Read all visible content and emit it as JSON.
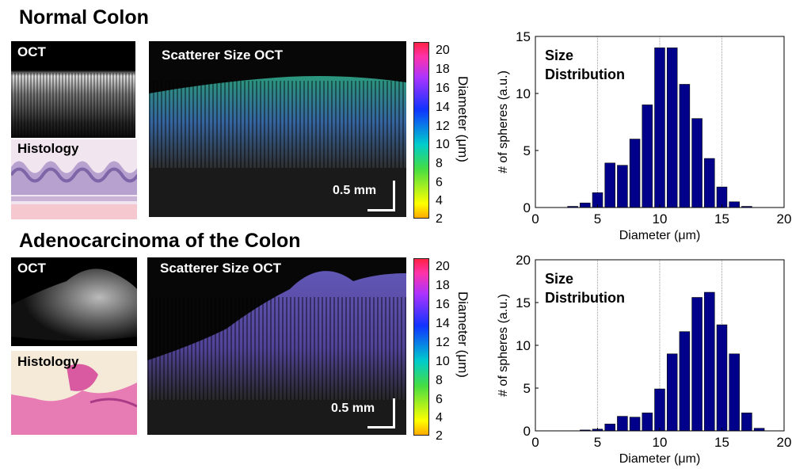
{
  "sections": [
    {
      "title": "Normal Colon",
      "oct_label": "OCT",
      "histology_label": "Histology",
      "scatter_label": "Scatterer Size OCT",
      "scalebar_label": "0.5 mm",
      "colorbar": {
        "label": "Diameter (μm)",
        "ticks": [
          "2",
          "4",
          "6",
          "8",
          "10",
          "12",
          "14",
          "16",
          "18",
          "20"
        ]
      }
    },
    {
      "title": "Adenocarcinoma of the Colon",
      "oct_label": "OCT",
      "histology_label": "Histology",
      "scatter_label": "Scatterer Size OCT",
      "scalebar_label": "0.5 mm",
      "colorbar": {
        "label": "Diameter (μm)",
        "ticks": [
          "2",
          "4",
          "6",
          "8",
          "10",
          "12",
          "14",
          "16",
          "18",
          "20"
        ]
      }
    }
  ],
  "chart_data": [
    {
      "type": "bar",
      "annotation": "Size Distribution",
      "xlabel": "Diameter (μm)",
      "ylabel": "# of spheres (a.u.)",
      "xlim": [
        0,
        20
      ],
      "ylim": [
        0,
        15
      ],
      "xticks": [
        0,
        5,
        10,
        15,
        20
      ],
      "yticks": [
        0,
        5,
        10,
        15
      ],
      "grid_x": [
        5,
        10,
        15
      ],
      "bar_color": "#00008b",
      "x": [
        3,
        4,
        5,
        6,
        7,
        8,
        9,
        10,
        11,
        12,
        13,
        14,
        15,
        16,
        17
      ],
      "values": [
        0.1,
        0.4,
        1.3,
        3.9,
        3.7,
        6.0,
        9.0,
        14.0,
        14.0,
        10.8,
        7.8,
        4.3,
        1.8,
        0.5,
        0.1
      ]
    },
    {
      "type": "bar",
      "annotation": "Size Distribution",
      "xlabel": "Diameter (μm)",
      "ylabel": "# of spheres (a.u.)",
      "xlim": [
        0,
        20
      ],
      "ylim": [
        0,
        20
      ],
      "xticks": [
        0,
        5,
        10,
        15,
        20
      ],
      "yticks": [
        0,
        5,
        10,
        15,
        20
      ],
      "grid_x": [
        5,
        10,
        15
      ],
      "bar_color": "#00008b",
      "x": [
        4,
        5,
        6,
        7,
        8,
        9,
        10,
        11,
        12,
        13,
        14,
        15,
        16,
        17,
        18
      ],
      "values": [
        0.1,
        0.2,
        0.8,
        1.7,
        1.6,
        2.1,
        4.9,
        9.0,
        11.6,
        15.6,
        16.2,
        12.4,
        9.0,
        2.1,
        0.3
      ]
    }
  ]
}
